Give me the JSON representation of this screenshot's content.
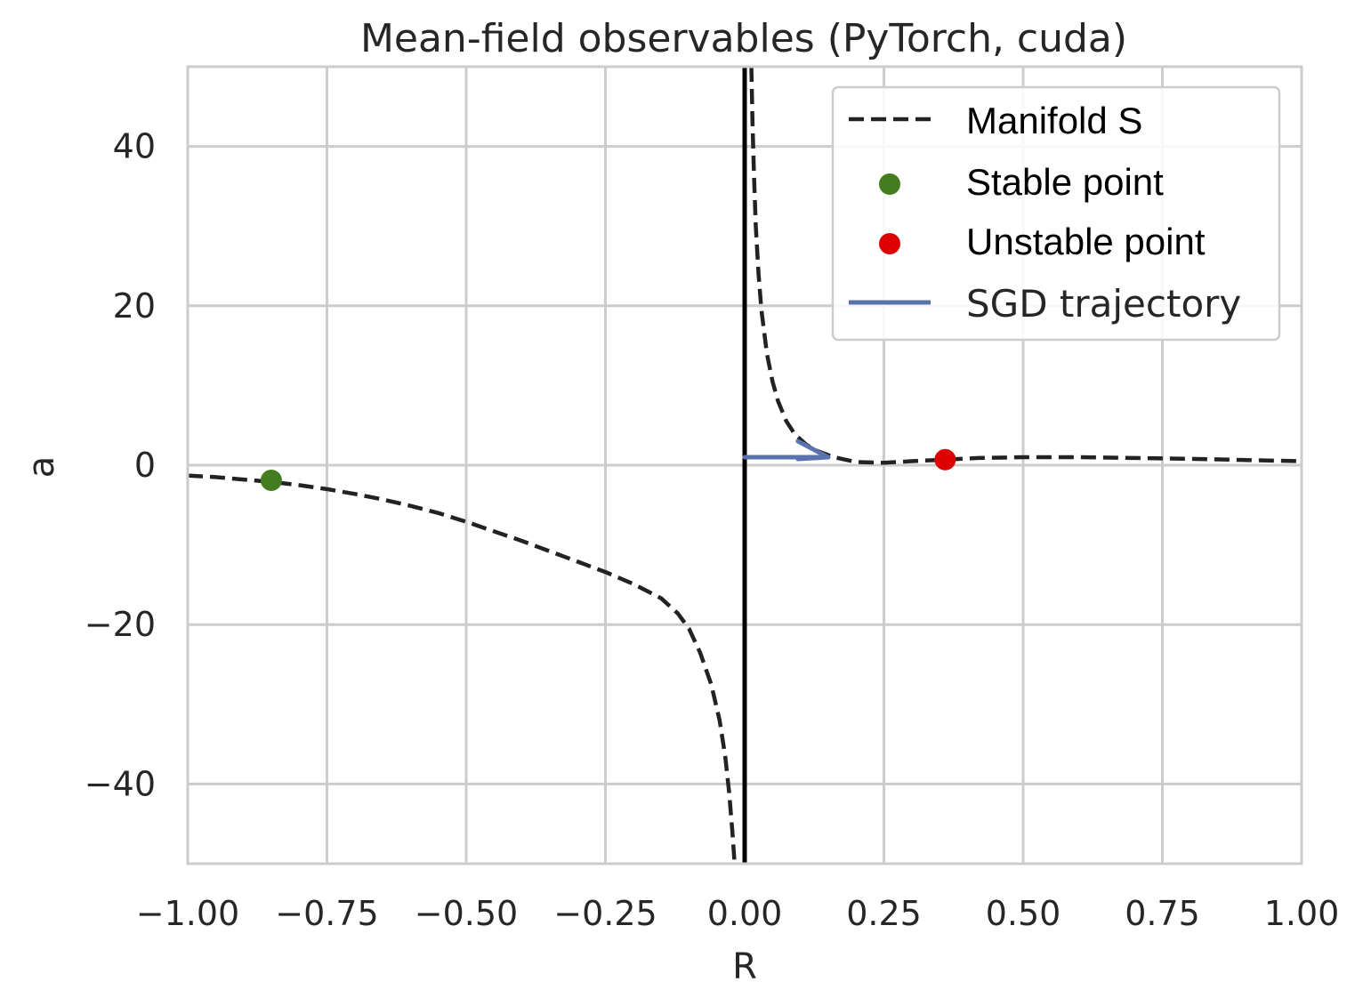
{
  "chart_data": {
    "type": "line",
    "title": "Mean-field observables (PyTorch, cuda)",
    "xlabel": "R",
    "ylabel": "a",
    "xlim": [
      -1.0,
      1.0
    ],
    "ylim": [
      -50,
      50
    ],
    "grid": true,
    "legend_position": "top-right",
    "x_ticks": [
      -1.0,
      -0.75,
      -0.5,
      -0.25,
      0.0,
      0.25,
      0.5,
      0.75,
      1.0
    ],
    "x_tick_labels": [
      "−1.00",
      "−0.75",
      "−0.50",
      "−0.25",
      "0.00",
      "0.25",
      "0.50",
      "0.75",
      "1.00"
    ],
    "y_ticks": [
      -40,
      -20,
      0,
      20,
      40
    ],
    "y_tick_labels": [
      "−40",
      "−20",
      "0",
      "20",
      "40"
    ],
    "vertical_line": {
      "x": 0.0,
      "color": "#000000"
    },
    "series": [
      {
        "name": "Manifold S",
        "style": "dashed",
        "color": "#222222",
        "segments": [
          {
            "x": [
              -1.0,
              -0.95,
              -0.9,
              -0.85,
              -0.8,
              -0.75,
              -0.7,
              -0.65,
              -0.6,
              -0.55,
              -0.5,
              -0.45,
              -0.4,
              -0.35,
              -0.3,
              -0.25,
              -0.2,
              -0.15,
              -0.12,
              -0.1,
              -0.08,
              -0.06,
              -0.045,
              -0.035,
              -0.028,
              -0.022,
              -0.018
            ],
            "y": [
              -1.3,
              -1.5,
              -1.8,
              -2.1,
              -2.5,
              -3.0,
              -3.6,
              -4.3,
              -5.1,
              -6.0,
              -7.1,
              -8.3,
              -9.5,
              -10.8,
              -12.1,
              -13.4,
              -14.9,
              -16.7,
              -18.6,
              -20.5,
              -23.5,
              -27.5,
              -32.0,
              -36.5,
              -41.0,
              -46.0,
              -50.0
            ]
          },
          {
            "x": [
              0.012,
              0.014,
              0.017,
              0.02,
              0.025,
              0.03,
              0.04,
              0.05,
              0.06,
              0.075,
              0.09,
              0.11,
              0.13,
              0.16,
              0.2,
              0.25,
              0.3,
              0.36,
              0.42,
              0.5,
              0.6,
              0.7,
              0.8,
              0.9,
              1.0
            ],
            "y": [
              50.0,
              43.0,
              36.0,
              30.0,
              24.0,
              19.5,
              14.0,
              10.5,
              8.0,
              5.5,
              3.9,
              2.6,
              1.8,
              1.0,
              0.4,
              0.3,
              0.5,
              0.7,
              0.9,
              1.0,
              1.0,
              0.9,
              0.8,
              0.65,
              0.5
            ]
          }
        ]
      },
      {
        "name": "Stable point",
        "style": "marker",
        "color": "#437d1f",
        "points": [
          {
            "x": -0.85,
            "y": -1.9
          }
        ]
      },
      {
        "name": "Unstable point",
        "style": "marker",
        "color": "#dd0000",
        "points": [
          {
            "x": 0.36,
            "y": 0.7
          }
        ]
      },
      {
        "name": "SGD trajectory",
        "style": "solid",
        "color": "#5a72ae",
        "x": [
          0.0,
          0.04,
          0.08,
          0.12,
          0.15
        ],
        "y": [
          1.0,
          1.0,
          1.0,
          1.0,
          1.0
        ]
      }
    ],
    "legend": [
      {
        "label": "Manifold S",
        "kind": "dashed-line",
        "color": "#222222"
      },
      {
        "label": "Stable point",
        "kind": "dot",
        "color": "#437d1f"
      },
      {
        "label": "Unstable point",
        "kind": "dot",
        "color": "#dd0000"
      },
      {
        "label": "SGD trajectory",
        "kind": "solid-line",
        "color": "#5a72ae"
      }
    ]
  }
}
